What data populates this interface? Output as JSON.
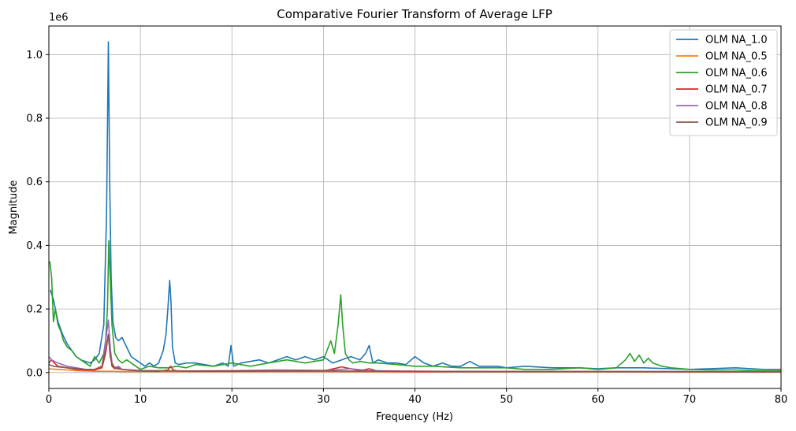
{
  "chart_data": {
    "type": "line",
    "title": "Comparative Fourier Transform of Average LFP",
    "xlabel": "Frequency (Hz)",
    "ylabel": "Magnitude",
    "y_offset_label": "1e6",
    "xlim": [
      0,
      80
    ],
    "ylim": [
      -0.05,
      1.09
    ],
    "xticks": [
      0,
      10,
      20,
      30,
      40,
      50,
      60,
      70,
      80
    ],
    "yticks": [
      0.0,
      0.2,
      0.4,
      0.6,
      0.8,
      1.0
    ],
    "xtick_labels": [
      "0",
      "10",
      "20",
      "30",
      "40",
      "50",
      "60",
      "70",
      "80"
    ],
    "ytick_labels": [
      "0.0",
      "0.2",
      "0.4",
      "0.6",
      "0.8",
      "1.0"
    ],
    "grid": true,
    "legend_position": "top-right",
    "series": [
      {
        "name": "OLM NA_1.0",
        "color": "#1f77b4",
        "x": [
          0.15,
          0.5,
          1,
          1.5,
          2,
          2.5,
          3,
          3.5,
          4,
          4.5,
          5,
          5.5,
          6,
          6.3,
          6.5,
          6.65,
          6.8,
          7,
          7.3,
          7.6,
          8,
          8.5,
          9,
          9.5,
          10,
          10.5,
          11,
          11.5,
          12,
          12.5,
          12.8,
          13,
          13.2,
          13.35,
          13.5,
          13.8,
          14.2,
          15,
          16,
          17,
          18,
          19,
          19.6,
          19.9,
          20.2,
          21,
          22,
          23,
          24,
          25,
          26,
          27,
          28,
          29,
          30,
          31,
          32,
          33,
          34,
          34.6,
          35,
          35.4,
          36,
          37,
          38,
          39,
          40,
          41,
          42,
          43,
          44,
          45,
          46,
          47,
          48,
          49,
          50,
          52,
          55,
          58,
          60,
          62,
          65,
          68,
          70,
          72,
          75,
          78,
          80
        ],
        "values": [
          0.26,
          0.23,
          0.16,
          0.12,
          0.09,
          0.07,
          0.05,
          0.04,
          0.035,
          0.03,
          0.04,
          0.06,
          0.15,
          0.5,
          1.04,
          0.6,
          0.3,
          0.16,
          0.11,
          0.1,
          0.11,
          0.08,
          0.05,
          0.04,
          0.03,
          0.02,
          0.03,
          0.02,
          0.03,
          0.07,
          0.12,
          0.2,
          0.29,
          0.22,
          0.08,
          0.03,
          0.025,
          0.03,
          0.03,
          0.025,
          0.02,
          0.03,
          0.02,
          0.085,
          0.02,
          0.03,
          0.035,
          0.04,
          0.03,
          0.04,
          0.05,
          0.04,
          0.05,
          0.04,
          0.05,
          0.03,
          0.04,
          0.05,
          0.04,
          0.06,
          0.085,
          0.03,
          0.04,
          0.03,
          0.03,
          0.025,
          0.05,
          0.03,
          0.02,
          0.03,
          0.02,
          0.02,
          0.035,
          0.02,
          0.02,
          0.02,
          0.015,
          0.02,
          0.015,
          0.015,
          0.012,
          0.015,
          0.015,
          0.012,
          0.01,
          0.012,
          0.015,
          0.01,
          0.01
        ]
      },
      {
        "name": "OLM NA_0.5",
        "color": "#ff7f0e",
        "x": [
          0,
          1,
          2,
          3,
          4,
          5,
          6,
          7,
          8,
          10,
          15,
          20,
          30,
          40,
          50,
          60,
          70,
          80
        ],
        "values": [
          0.012,
          0.01,
          0.008,
          0.006,
          0.005,
          0.004,
          0.004,
          0.004,
          0.003,
          0.003,
          0.003,
          0.003,
          0.003,
          0.002,
          0.002,
          0.002,
          0.002,
          0.002
        ]
      },
      {
        "name": "OLM NA_0.6",
        "color": "#2ca02c",
        "x": [
          0.1,
          0.3,
          0.5,
          0.7,
          1,
          1.3,
          1.6,
          2,
          2.5,
          3,
          3.5,
          4,
          4.5,
          5,
          5.5,
          6,
          6.2,
          6.4,
          6.55,
          6.7,
          6.9,
          7.2,
          7.6,
          8,
          8.5,
          9,
          9.5,
          10,
          11,
          12,
          13,
          14,
          15,
          16,
          18,
          20,
          22,
          24,
          26,
          28,
          30,
          30.8,
          31.2,
          31.6,
          31.9,
          32.1,
          32.4,
          32.8,
          33.2,
          34,
          35,
          36,
          38,
          40,
          42,
          45,
          48,
          50,
          52,
          55,
          58,
          60,
          62,
          63,
          63.5,
          64,
          64.5,
          65,
          65.5,
          66,
          67,
          68,
          70,
          72,
          75,
          78,
          80
        ],
        "values": [
          0.35,
          0.3,
          0.16,
          0.2,
          0.15,
          0.13,
          0.1,
          0.08,
          0.07,
          0.05,
          0.04,
          0.03,
          0.02,
          0.05,
          0.03,
          0.06,
          0.1,
          0.2,
          0.415,
          0.3,
          0.15,
          0.06,
          0.04,
          0.03,
          0.04,
          0.03,
          0.02,
          0.01,
          0.02,
          0.015,
          0.015,
          0.02,
          0.015,
          0.025,
          0.02,
          0.03,
          0.02,
          0.03,
          0.04,
          0.03,
          0.04,
          0.1,
          0.06,
          0.15,
          0.245,
          0.15,
          0.06,
          0.04,
          0.03,
          0.035,
          0.03,
          0.03,
          0.025,
          0.02,
          0.02,
          0.015,
          0.015,
          0.015,
          0.01,
          0.01,
          0.015,
          0.01,
          0.015,
          0.04,
          0.06,
          0.035,
          0.055,
          0.03,
          0.045,
          0.03,
          0.02,
          0.015,
          0.01,
          0.008,
          0.008,
          0.005,
          0.005
        ]
      },
      {
        "name": "OLM NA_0.7",
        "color": "#d62728",
        "x": [
          0,
          0.3,
          0.6,
          1,
          2,
          3,
          4,
          5,
          5.8,
          6.2,
          6.5,
          6.7,
          6.9,
          7.2,
          7.6,
          8,
          9,
          10,
          12,
          13,
          13.3,
          13.6,
          14,
          16,
          18,
          20,
          25,
          30,
          32,
          34,
          35,
          36,
          40,
          50,
          60,
          70,
          80
        ],
        "values": [
          0.03,
          0.04,
          0.03,
          0.02,
          0.015,
          0.01,
          0.008,
          0.008,
          0.015,
          0.06,
          0.12,
          0.06,
          0.02,
          0.012,
          0.015,
          0.01,
          0.007,
          0.005,
          0.004,
          0.008,
          0.02,
          0.008,
          0.005,
          0.004,
          0.004,
          0.004,
          0.005,
          0.005,
          0.018,
          0.006,
          0.012,
          0.004,
          0.003,
          0.003,
          0.003,
          0.002,
          0.002
        ]
      },
      {
        "name": "OLM NA_0.8",
        "color": "#9467bd",
        "x": [
          0,
          0.3,
          0.6,
          1,
          1.5,
          2,
          3,
          4,
          5,
          5.8,
          6.2,
          6.5,
          6.7,
          6.9,
          7.2,
          7.6,
          8,
          9,
          10,
          12,
          15,
          20,
          25,
          30,
          33,
          35,
          40,
          50,
          60,
          70,
          80
        ],
        "values": [
          0.05,
          0.04,
          0.035,
          0.03,
          0.025,
          0.02,
          0.015,
          0.01,
          0.01,
          0.02,
          0.1,
          0.165,
          0.08,
          0.03,
          0.015,
          0.02,
          0.01,
          0.008,
          0.006,
          0.006,
          0.005,
          0.006,
          0.008,
          0.007,
          0.012,
          0.006,
          0.004,
          0.003,
          0.003,
          0.003,
          0.002
        ]
      },
      {
        "name": "OLM NA_0.9",
        "color": "#8c564b",
        "x": [
          0,
          0.5,
          1,
          2,
          3,
          4,
          5,
          5.8,
          6.2,
          6.5,
          6.7,
          7,
          7.5,
          8,
          10,
          15,
          20,
          30,
          40,
          50,
          60,
          70,
          80
        ],
        "values": [
          0.025,
          0.02,
          0.018,
          0.015,
          0.012,
          0.01,
          0.01,
          0.02,
          0.07,
          0.12,
          0.05,
          0.02,
          0.012,
          0.01,
          0.006,
          0.005,
          0.005,
          0.005,
          0.004,
          0.003,
          0.003,
          0.003,
          0.002
        ]
      }
    ]
  }
}
